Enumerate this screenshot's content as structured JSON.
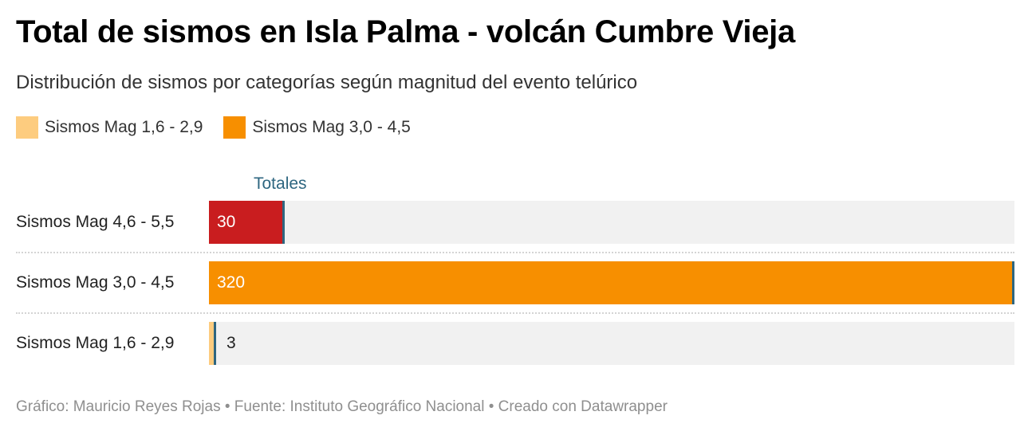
{
  "header": {
    "title": "Total de sismos en Isla Palma - volcán Cumbre Vieja",
    "subtitle": "Distribución de sismos por categorías según magnitud del evento telúrico"
  },
  "legend": [
    {
      "label": "Sismos Mag 1,6 - 2,9",
      "color": "#fdcc7f"
    },
    {
      "label": "Sismos Mag 3,0 - 4,5",
      "color": "#f78f00"
    }
  ],
  "totals_label": "Totales",
  "chart_data": {
    "type": "bar",
    "orientation": "horizontal",
    "xlim": [
      0,
      320
    ],
    "categories": [
      "Sismos Mag 4,6 - 5,5",
      "Sismos Mag 3,0 - 4,5",
      "Sismos Mag 1,6 - 2,9"
    ],
    "values": [
      30,
      320,
      3
    ],
    "value_labels": [
      "30",
      "320",
      "3"
    ],
    "colors": [
      "#c91d1f",
      "#f78f00",
      "#fdcc7f"
    ],
    "totals": [
      30,
      320,
      3
    ]
  },
  "footer": "Gráfico: Mauricio Reyes Rojas • Fuente: Instituto Geográfico Nacional • Creado con Datawrapper"
}
